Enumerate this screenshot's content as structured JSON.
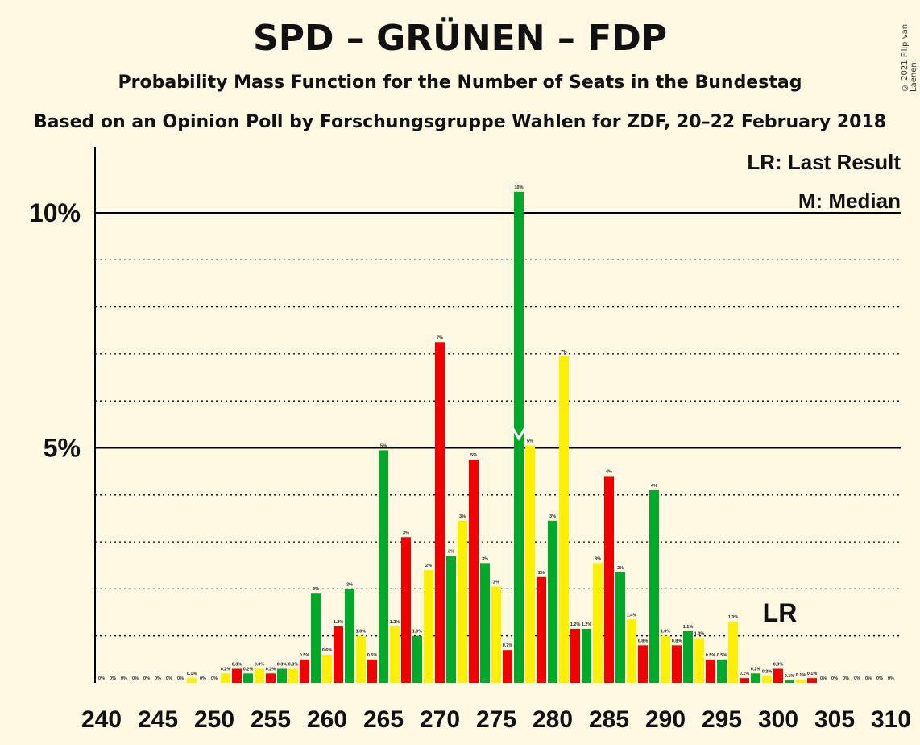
{
  "header": {
    "title": "SPD – GRÜNEN – FDP",
    "subtitle": "Probability Mass Function for the Number of Seats in the Bundestag",
    "subtitle2": "Based on an Opinion Poll by Forschungsgruppe Wahlen for ZDF, 20–22 February 2018",
    "copyright": "© 2021 Filip van Laenen"
  },
  "legend": {
    "lr": "LR: Last Result",
    "m": "M: Median",
    "lr_marker": "LR",
    "m_marker": "M"
  },
  "colors": {
    "green": "#00A92A",
    "red": "#F10000",
    "yellow": "#FFEF00",
    "background": "#FFF8E2"
  },
  "chart_data": {
    "type": "bar",
    "xlim": [
      240,
      310
    ],
    "ylim": [
      0,
      11
    ],
    "x_ticks": [
      240,
      245,
      250,
      255,
      260,
      265,
      270,
      275,
      280,
      285,
      290,
      295,
      300,
      305,
      310
    ],
    "y_ticks": [
      {
        "value": 5,
        "label": "5%"
      },
      {
        "value": 10,
        "label": "10%"
      }
    ],
    "median": 277,
    "last_result": 301,
    "bars": [
      {
        "seats": 240,
        "value": 0,
        "label": "0%",
        "color": "green"
      },
      {
        "seats": 241,
        "value": 0,
        "label": "0%",
        "color": "red"
      },
      {
        "seats": 242,
        "value": 0,
        "label": "0%",
        "color": "yellow"
      },
      {
        "seats": 243,
        "value": 0,
        "label": "0%",
        "color": "green"
      },
      {
        "seats": 244,
        "value": 0,
        "label": "0%",
        "color": "red"
      },
      {
        "seats": 245,
        "value": 0,
        "label": "0%",
        "color": "yellow"
      },
      {
        "seats": 246,
        "value": 0,
        "label": "0%",
        "color": "green"
      },
      {
        "seats": 247,
        "value": 0,
        "label": "0%",
        "color": "red"
      },
      {
        "seats": 248,
        "value": 0.1,
        "label": "0.1%",
        "color": "yellow"
      },
      {
        "seats": 249,
        "value": 0,
        "label": "0%",
        "color": "green"
      },
      {
        "seats": 250,
        "value": 0,
        "label": "0%",
        "color": "red"
      },
      {
        "seats": 251,
        "value": 0.2,
        "label": "0.2%",
        "color": "yellow"
      },
      {
        "seats": 252,
        "value": 0.3,
        "label": "0.3%",
        "color": "red"
      },
      {
        "seats": 253,
        "value": 0.2,
        "label": "0.2%",
        "color": "green"
      },
      {
        "seats": 254,
        "value": 0.3,
        "label": "0.3%",
        "color": "yellow"
      },
      {
        "seats": 255,
        "value": 0.2,
        "label": "0.2%",
        "color": "red"
      },
      {
        "seats": 256,
        "value": 0.3,
        "label": "0.3%",
        "color": "green"
      },
      {
        "seats": 257,
        "value": 0.3,
        "label": "0.3%",
        "color": "yellow"
      },
      {
        "seats": 258,
        "value": 0.5,
        "label": "0.5%",
        "color": "red"
      },
      {
        "seats": 259,
        "value": 1.9,
        "label": "2%",
        "color": "green"
      },
      {
        "seats": 260,
        "value": 0.6,
        "label": "0.6%",
        "color": "yellow"
      },
      {
        "seats": 261,
        "value": 1.2,
        "label": "1.2%",
        "color": "red"
      },
      {
        "seats": 262,
        "value": 2.0,
        "label": "2%",
        "color": "green"
      },
      {
        "seats": 263,
        "value": 1.0,
        "label": "1.0%",
        "color": "yellow"
      },
      {
        "seats": 264,
        "value": 0.5,
        "label": "0.5%",
        "color": "red"
      },
      {
        "seats": 265,
        "value": 4.95,
        "label": "5%",
        "color": "green"
      },
      {
        "seats": 266,
        "value": 1.2,
        "label": "1.2%",
        "color": "yellow"
      },
      {
        "seats": 267,
        "value": 3.1,
        "label": "3%",
        "color": "red"
      },
      {
        "seats": 268,
        "value": 1.0,
        "label": "1.0%",
        "color": "green"
      },
      {
        "seats": 269,
        "value": 2.4,
        "label": "2%",
        "color": "yellow"
      },
      {
        "seats": 270,
        "value": 7.25,
        "label": "7%",
        "color": "red"
      },
      {
        "seats": 271,
        "value": 2.7,
        "label": "3%",
        "color": "green"
      },
      {
        "seats": 272,
        "value": 3.45,
        "label": "3%",
        "color": "yellow"
      },
      {
        "seats": 273,
        "value": 4.75,
        "label": "5%",
        "color": "red"
      },
      {
        "seats": 274,
        "value": 2.55,
        "label": "3%",
        "color": "green"
      },
      {
        "seats": 275,
        "value": 2.05,
        "label": "2%",
        "color": "yellow"
      },
      {
        "seats": 276,
        "value": 0.7,
        "label": "0.7%",
        "color": "red"
      },
      {
        "seats": 277,
        "value": 10.45,
        "label": "10%",
        "color": "green"
      },
      {
        "seats": 278,
        "value": 5.05,
        "label": "5%",
        "color": "yellow"
      },
      {
        "seats": 279,
        "value": 2.25,
        "label": "2%",
        "color": "red"
      },
      {
        "seats": 280,
        "value": 3.45,
        "label": "3%",
        "color": "green"
      },
      {
        "seats": 281,
        "value": 6.95,
        "label": "7%",
        "color": "yellow"
      },
      {
        "seats": 282,
        "value": 1.15,
        "label": "1.2%",
        "color": "red"
      },
      {
        "seats": 283,
        "value": 1.15,
        "label": "1.2%",
        "color": "green"
      },
      {
        "seats": 284,
        "value": 2.55,
        "label": "3%",
        "color": "yellow"
      },
      {
        "seats": 285,
        "value": 4.4,
        "label": "4%",
        "color": "red"
      },
      {
        "seats": 286,
        "value": 2.35,
        "label": "2%",
        "color": "green"
      },
      {
        "seats": 287,
        "value": 1.35,
        "label": "1.4%",
        "color": "yellow"
      },
      {
        "seats": 288,
        "value": 0.8,
        "label": "0.8%",
        "color": "red"
      },
      {
        "seats": 289,
        "value": 4.1,
        "label": "4%",
        "color": "green"
      },
      {
        "seats": 290,
        "value": 1.0,
        "label": "1.0%",
        "color": "yellow"
      },
      {
        "seats": 291,
        "value": 0.8,
        "label": "0.8%",
        "color": "red"
      },
      {
        "seats": 292,
        "value": 1.1,
        "label": "1.1%",
        "color": "green"
      },
      {
        "seats": 293,
        "value": 0.95,
        "label": "1.0%",
        "color": "yellow"
      },
      {
        "seats": 294,
        "value": 0.5,
        "label": "0.5%",
        "color": "red"
      },
      {
        "seats": 295,
        "value": 0.5,
        "label": "0.5%",
        "color": "green"
      },
      {
        "seats": 296,
        "value": 1.3,
        "label": "1.3%",
        "color": "yellow"
      },
      {
        "seats": 297,
        "value": 0.1,
        "label": "0.1%",
        "color": "red"
      },
      {
        "seats": 298,
        "value": 0.2,
        "label": "0.2%",
        "color": "green"
      },
      {
        "seats": 299,
        "value": 0.15,
        "label": "0.2%",
        "color": "yellow"
      },
      {
        "seats": 300,
        "value": 0.3,
        "label": "0.3%",
        "color": "red"
      },
      {
        "seats": 301,
        "value": 0.05,
        "label": "0.1%",
        "color": "green"
      },
      {
        "seats": 302,
        "value": 0.07,
        "label": "0.1%",
        "color": "yellow"
      },
      {
        "seats": 303,
        "value": 0.1,
        "label": "0.1%",
        "color": "red"
      },
      {
        "seats": 304,
        "value": 0,
        "label": "0%",
        "color": "green"
      },
      {
        "seats": 305,
        "value": 0,
        "label": "0%",
        "color": "yellow"
      },
      {
        "seats": 306,
        "value": 0,
        "label": "0%",
        "color": "red"
      },
      {
        "seats": 307,
        "value": 0,
        "label": "0%",
        "color": "green"
      },
      {
        "seats": 308,
        "value": 0,
        "label": "0%",
        "color": "yellow"
      },
      {
        "seats": 309,
        "value": 0,
        "label": "0%",
        "color": "red"
      },
      {
        "seats": 310,
        "value": 0,
        "label": "0%",
        "color": "green"
      }
    ]
  }
}
